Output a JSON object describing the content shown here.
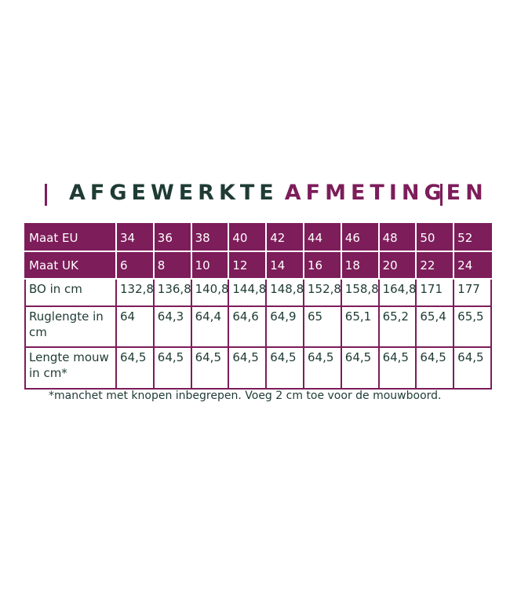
{
  "title": {
    "part1": "AFGEWERKTE",
    "part2": "AFMETINGEN"
  },
  "table": {
    "rows": [
      [
        "Maat EU",
        "34",
        "36",
        "38",
        "40",
        "42",
        "44",
        "46",
        "48",
        "50",
        "52"
      ],
      [
        "Maat UK",
        "6",
        "8",
        "10",
        "12",
        "14",
        "16",
        "18",
        "20",
        "22",
        "24"
      ],
      [
        "BO in cm",
        "132,8",
        "136,8",
        "140,8",
        "144,8",
        "148,8",
        "152,8",
        "158,8",
        "164,8",
        "171",
        "177"
      ],
      [
        "Ruglengte in cm",
        "64",
        "64,3",
        "64,4",
        "64,6",
        "64,9",
        "65",
        "65,1",
        "65,2",
        "65,4",
        "65,5"
      ],
      [
        "Lengte mouw in cm*",
        "64,5",
        "64,5",
        "64,5",
        "64,5",
        "64,5",
        "64,5",
        "64,5",
        "64,5",
        "64,5",
        "64,5"
      ]
    ],
    "header_rows": 2
  },
  "footnote": "*manchet met knopen inbegrepen. Voeg 2 cm toe voor de mouwboord."
}
